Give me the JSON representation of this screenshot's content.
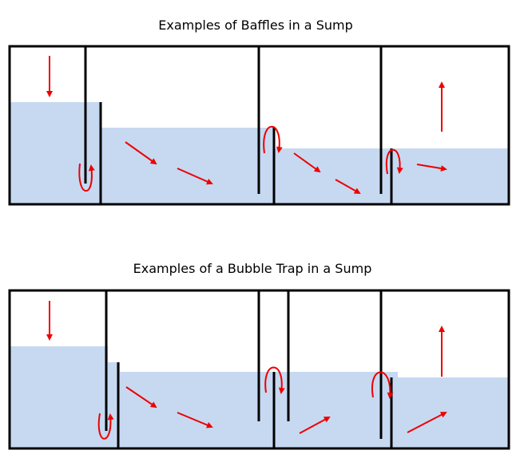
{
  "diagrams": [
    {
      "title": "Examples of Baffles in a Sump"
    },
    {
      "title": "Examples of a Bubble Trap in a Sump"
    }
  ]
}
